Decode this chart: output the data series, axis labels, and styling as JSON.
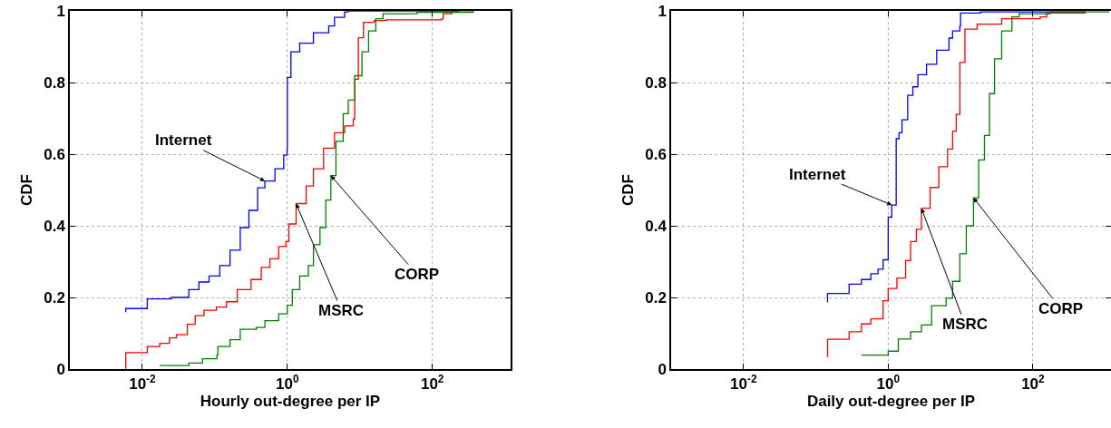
{
  "chart_data": [
    {
      "type": "step",
      "xlabel": "Hourly out-degree per IP",
      "ylabel": "CDF",
      "log": "x",
      "grid": true,
      "line_style": "solid",
      "xlim": [
        0.001,
        1200
      ],
      "xticks": [
        {
          "value": 0.01,
          "label": "10$^{-2}$"
        },
        {
          "value": 1,
          "label": "10$^{0}$"
        },
        {
          "value": 100,
          "label": "10$^{2}$"
        }
      ],
      "ylim": [
        0,
        1
      ],
      "yticks": [
        0,
        0.2,
        0.4,
        0.6,
        0.8,
        1
      ],
      "series": [
        {
          "color": "#0000ff",
          "x": [
            0.0059,
            0.0059,
            0.0117,
            0.0251,
            0.0437,
            0.0603,
            0.0832,
            0.117,
            0.162,
            0.224,
            0.295,
            0.389,
            0.49,
            0.676,
            0.891,
            0.99,
            1,
            1.12,
            1.48,
            2.29,
            3.72,
            4.47,
            6.17,
            6.92,
            234
          ],
          "values": [
            0.159,
            0.169,
            0.196,
            0.2,
            0.222,
            0.243,
            0.26,
            0.289,
            0.332,
            0.395,
            0.443,
            0.506,
            0.525,
            0.559,
            0.597,
            0.612,
            0.814,
            0.886,
            0.91,
            0.939,
            0.958,
            0.982,
            0.997,
            1,
            1
          ]
        },
        {
          "color": "#ff0000",
          "x": [
            0.0059,
            0.0059,
            0.0117,
            0.0174,
            0.0236,
            0.0295,
            0.0417,
            0.0537,
            0.0708,
            0.105,
            0.145,
            0.204,
            0.316,
            0.437,
            0.575,
            0.759,
            0.955,
            1.05,
            1.32,
            1.82,
            2.29,
            3.16,
            4.47,
            6.17,
            8.13,
            8.51,
            9.55,
            11.2,
            15.8,
            22.9,
            135,
            141,
            186,
            363
          ],
          "values": [
            0,
            0.046,
            0.063,
            0.072,
            0.087,
            0.096,
            0.125,
            0.149,
            0.164,
            0.173,
            0.188,
            0.222,
            0.25,
            0.284,
            0.308,
            0.342,
            0.356,
            0.405,
            0.462,
            0.511,
            0.559,
            0.617,
            0.66,
            0.679,
            0.698,
            0.809,
            0.925,
            0.968,
            0.973,
            0.975,
            0.978,
            0.992,
            0.997,
            1
          ]
        },
        {
          "color": "#008000",
          "x": [
            0.0174,
            0.0437,
            0.0676,
            0.107,
            0.11,
            0.162,
            0.224,
            0.372,
            0.49,
            0.759,
            1,
            1.17,
            1.48,
            1.95,
            2.29,
            2.82,
            3.39,
            3.98,
            4.68,
            5.89,
            6.92,
            8.51,
            10.7,
            13.2,
            16.6,
            20.9,
            61.7,
            363
          ],
          "values": [
            0.01,
            0.017,
            0.029,
            0.039,
            0.063,
            0.082,
            0.111,
            0.116,
            0.135,
            0.154,
            0.178,
            0.222,
            0.26,
            0.289,
            0.347,
            0.395,
            0.472,
            0.54,
            0.636,
            0.713,
            0.751,
            0.819,
            0.886,
            0.944,
            0.978,
            0.992,
            0.996,
            1
          ]
        }
      ],
      "annotations": [
        {
          "text": "Internet",
          "x": 0.49,
          "y": 0.525
        },
        {
          "text": "MSRC",
          "x": 1.32,
          "y": 0.462
        },
        {
          "text": "CORP",
          "x": 3.98,
          "y": 0.54
        }
      ]
    },
    {
      "type": "step",
      "xlabel": "Daily out-degree per IP",
      "ylabel": "CDF",
      "log": "x",
      "grid": true,
      "line_style": "solid",
      "xlim": [
        0.001,
        1200
      ],
      "xticks": [
        {
          "value": 0.01,
          "label": "10$^{-2}$"
        },
        {
          "value": 1,
          "label": "10$^{0}$"
        },
        {
          "value": 100,
          "label": "10$^{2}$"
        }
      ],
      "ylim": [
        0,
        1
      ],
      "yticks": [
        0,
        0.2,
        0.4,
        0.6,
        0.8,
        1
      ],
      "series": [
        {
          "color": "#0000ff",
          "x": [
            0.145,
            0.145,
            0.288,
            0.427,
            0.575,
            0.724,
            0.851,
            1,
            1.12,
            1.29,
            1.41,
            1.55,
            1.86,
            2.19,
            2.57,
            3.39,
            4.68,
            6.92,
            7.76,
            9.77,
            10,
            19,
            525
          ],
          "values": [
            0.186,
            0.211,
            0.237,
            0.25,
            0.266,
            0.279,
            0.305,
            0.424,
            0.458,
            0.643,
            0.66,
            0.696,
            0.764,
            0.788,
            0.822,
            0.851,
            0.89,
            0.924,
            0.944,
            0.958,
            0.994,
            0.997,
            1
          ]
        },
        {
          "color": "#ff0000",
          "x": [
            0.145,
            0.145,
            0.288,
            0.427,
            0.575,
            0.851,
            1,
            1.32,
            1.74,
            2.04,
            2.45,
            2.88,
            3.8,
            5.01,
            6.61,
            7.76,
            8.71,
            9.77,
            11.5,
            17,
            37,
            126,
            155,
            525
          ],
          "values": [
            0.033,
            0.083,
            0.104,
            0.126,
            0.14,
            0.191,
            0.225,
            0.254,
            0.303,
            0.356,
            0.39,
            0.449,
            0.507,
            0.565,
            0.614,
            0.664,
            0.711,
            0.856,
            0.949,
            0.963,
            0.978,
            0.983,
            0.994,
            1
          ]
        },
        {
          "color": "#008000",
          "x": [
            0.427,
            1,
            1.38,
            2.04,
            2.88,
            3.98,
            6.31,
            7.76,
            9.77,
            12,
            15.1,
            17.8,
            21.4,
            25.1,
            29.5,
            37,
            51.3,
            64.6,
            174,
            1100
          ],
          "values": [
            0.039,
            0.05,
            0.084,
            0.104,
            0.123,
            0.177,
            0.198,
            0.245,
            0.322,
            0.4,
            0.478,
            0.584,
            0.652,
            0.769,
            0.866,
            0.944,
            0.983,
            0.992,
            0.997,
            1
          ]
        }
      ],
      "annotations": [
        {
          "text": "Internet",
          "x": 1.12,
          "y": 0.458
        },
        {
          "text": "MSRC",
          "x": 2.88,
          "y": 0.449
        },
        {
          "text": "CORP",
          "x": 15.1,
          "y": 0.478
        }
      ]
    }
  ]
}
